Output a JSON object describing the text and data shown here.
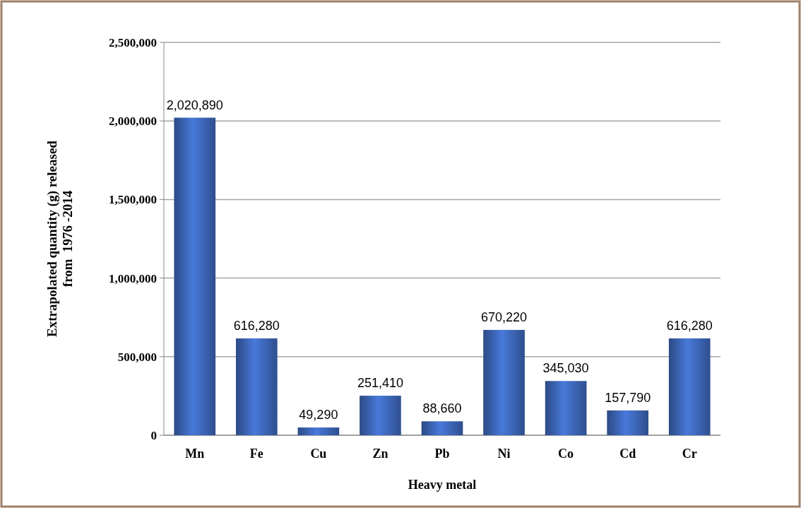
{
  "chart_data": {
    "type": "bar",
    "xlabel": "Heavy metal",
    "ylabel": "Extrapolated quantity (g) released\nfrom  1976 -2014",
    "categories": [
      "Mn",
      "Fe",
      "Cu",
      "Zn",
      "Pb",
      "Ni",
      "Co",
      "Cd",
      "Cr"
    ],
    "values": [
      2020890,
      616280,
      49290,
      251410,
      88660,
      670220,
      345030,
      157790,
      616280
    ],
    "color": "#3a62b0",
    "ylim": [
      0,
      2500000
    ],
    "yticks": [
      {
        "value": 0,
        "label": "0"
      },
      {
        "value": 500000,
        "label": "500,000"
      },
      {
        "value": 1000000,
        "label": "1,000,000"
      },
      {
        "value": 1500000,
        "label": "1,500,000"
      },
      {
        "value": 2000000,
        "label": "2,000,000"
      },
      {
        "value": 2500000,
        "label": "2,500,000"
      }
    ],
    "value_labels": [
      "2,020,890",
      "616,280",
      "49,290",
      "251,410",
      "88,660",
      "670,220",
      "345,030",
      "157,790",
      "616,280"
    ],
    "grid": "y"
  }
}
